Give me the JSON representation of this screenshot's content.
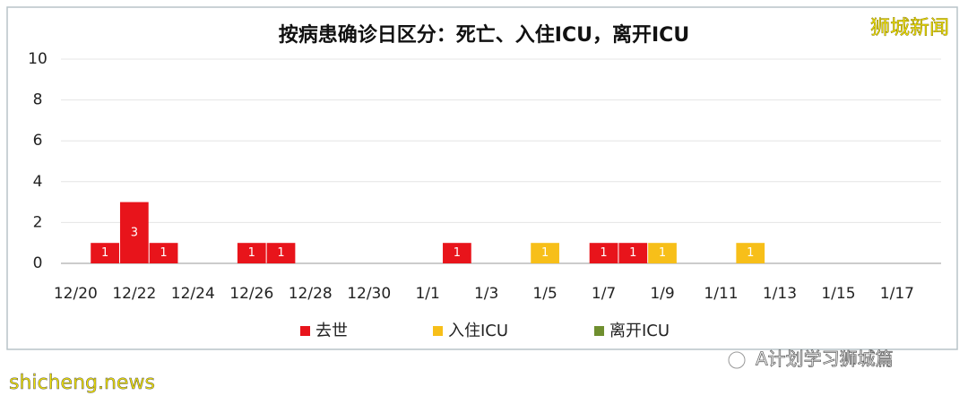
{
  "chart_data": {
    "type": "bar",
    "stacked": true,
    "title": "按病患确诊日区分：死亡、入住ICU，离开ICU",
    "categories": [
      "12/20",
      null,
      "12/22",
      null,
      "12/24",
      null,
      "12/26",
      null,
      "12/28",
      null,
      "12/30",
      null,
      "1/1",
      null,
      "1/3",
      null,
      "1/5",
      null,
      "1/7",
      null,
      "1/9",
      null,
      "1/11",
      null,
      "1/13",
      null,
      "1/15",
      null,
      "1/17",
      null
    ],
    "series": [
      {
        "name": "去世",
        "color": "#e8141b",
        "values": [
          0,
          1,
          3,
          1,
          0,
          0,
          1,
          1,
          0,
          0,
          0,
          0,
          0,
          1,
          0,
          0,
          0,
          0,
          1,
          1,
          0,
          0,
          0,
          0,
          0,
          0,
          0,
          0,
          0,
          0
        ]
      },
      {
        "name": "入住ICU",
        "color": "#f7bf19",
        "values": [
          0,
          0,
          0,
          0,
          0,
          0,
          0,
          0,
          0,
          0,
          0,
          0,
          0,
          0,
          0,
          0,
          1,
          0,
          0,
          0,
          1,
          0,
          0,
          1,
          0,
          0,
          0,
          0,
          0,
          0
        ]
      },
      {
        "name": "离开ICU",
        "color": "#6f8f2f",
        "values": [
          0,
          0,
          0,
          0,
          0,
          0,
          0,
          0,
          0,
          0,
          0,
          0,
          0,
          0,
          0,
          0,
          0,
          0,
          0,
          0,
          0,
          0,
          0,
          0,
          0,
          0,
          0,
          0,
          0,
          0
        ]
      }
    ],
    "ylim": [
      0,
      10
    ],
    "yticks": [
      0,
      2,
      4,
      6,
      8,
      10
    ],
    "grid": true,
    "legend": "bottom"
  },
  "watermarks": {
    "top_right": "狮城新闻",
    "bottom_left": "shicheng.news",
    "bottom_right": "A计划学习狮城篇"
  }
}
